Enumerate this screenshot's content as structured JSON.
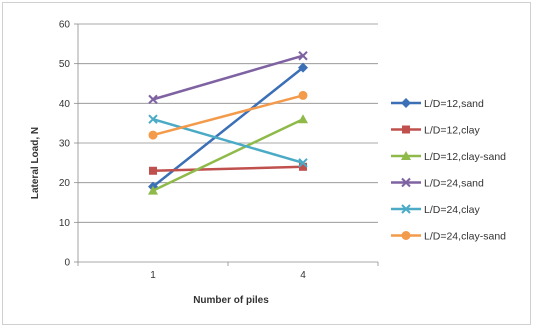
{
  "chart_data": {
    "type": "line",
    "title": "",
    "xlabel": "Number of piles",
    "ylabel": "Lateral Load, N",
    "categories": [
      "1",
      "4"
    ],
    "ylim": [
      0,
      60
    ],
    "yticks": [
      "0",
      "10",
      "20",
      "30",
      "40",
      "50",
      "60"
    ],
    "grid": "horizontal",
    "legend_position": "right",
    "series": [
      {
        "name": "L/D=12,sand",
        "values": [
          19,
          49
        ],
        "color": "#3b6fb6",
        "marker": "diamond"
      },
      {
        "name": "L/D=12,clay",
        "values": [
          23,
          24
        ],
        "color": "#c0504d",
        "marker": "square"
      },
      {
        "name": "L/D=12,clay-sand",
        "values": [
          18,
          36
        ],
        "color": "#8fba4a",
        "marker": "triangle"
      },
      {
        "name": "L/D=24,sand",
        "values": [
          41,
          52
        ],
        "color": "#7e62a2",
        "marker": "x"
      },
      {
        "name": "L/D=24,clay",
        "values": [
          36,
          25
        ],
        "color": "#4babc6",
        "marker": "x"
      },
      {
        "name": "L/D=24,clay-sand",
        "values": [
          32,
          42
        ],
        "color": "#f39a4b",
        "marker": "circle"
      }
    ]
  }
}
